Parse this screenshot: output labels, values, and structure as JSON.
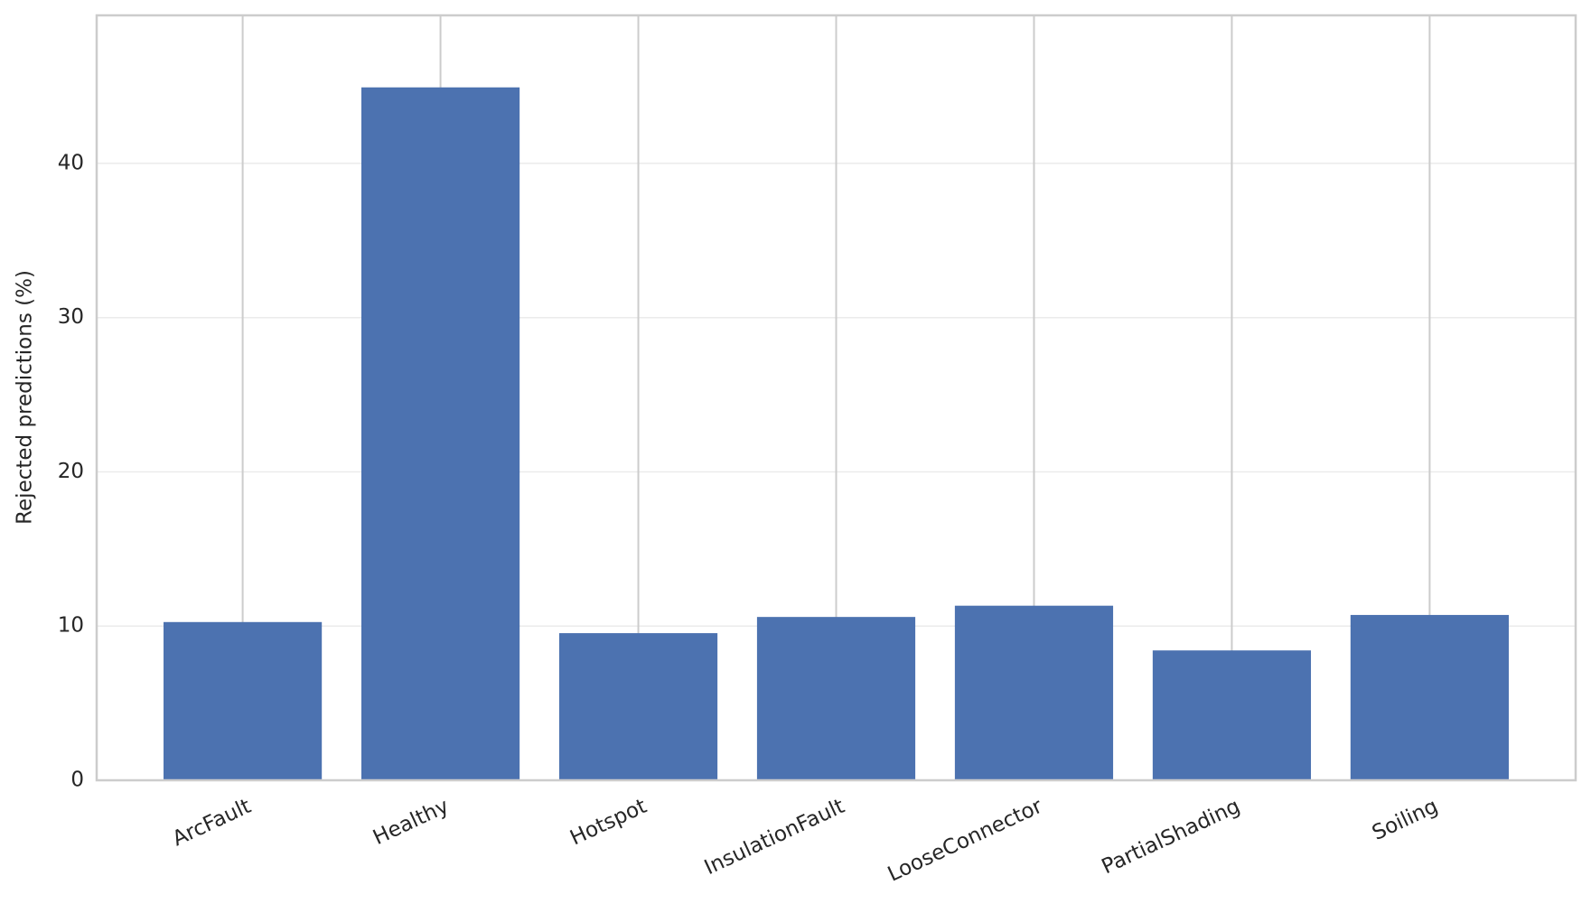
{
  "chart_data": {
    "type": "bar",
    "y_label": "Rejected predictions (%)",
    "categories": [
      "ArcFault",
      "Healthy",
      "Hotspot",
      "InsulationFault",
      "LooseConnector",
      "PartialShading",
      "Soiling"
    ],
    "values": [
      10.26,
      44.93,
      9.54,
      10.59,
      11.32,
      8.42,
      10.72
    ],
    "color": "#4c72b0",
    "ylim": [
      0,
      49.6
    ],
    "yticks": [
      0,
      10,
      20,
      30,
      40
    ],
    "grid": true
  }
}
